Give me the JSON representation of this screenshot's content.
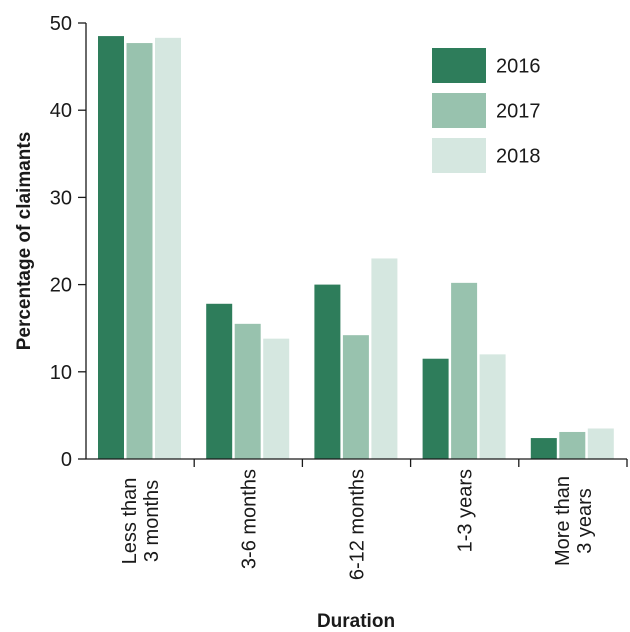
{
  "chart_data": {
    "type": "bar",
    "title": "",
    "xlabel": "Duration",
    "ylabel": "Percentage of claimants",
    "ylim": [
      0,
      50
    ],
    "yticks": [
      0,
      10,
      20,
      30,
      40,
      50
    ],
    "categories": [
      [
        "Less than",
        "3 months"
      ],
      [
        "3-6 months"
      ],
      [
        "6-12 months"
      ],
      [
        "1-3 years"
      ],
      [
        "More than",
        "3 years"
      ]
    ],
    "series": [
      {
        "name": "2016",
        "color": "#2e7d5b",
        "values": [
          48.5,
          17.8,
          20.0,
          11.5,
          2.4
        ]
      },
      {
        "name": "2017",
        "color": "#98c2ae",
        "values": [
          47.7,
          15.5,
          14.2,
          20.2,
          3.1
        ]
      },
      {
        "name": "2018",
        "color": "#d5e7e0",
        "values": [
          48.3,
          13.8,
          23.0,
          12.0,
          3.5
        ]
      }
    ],
    "legend_position": "top-right",
    "grid": false
  }
}
